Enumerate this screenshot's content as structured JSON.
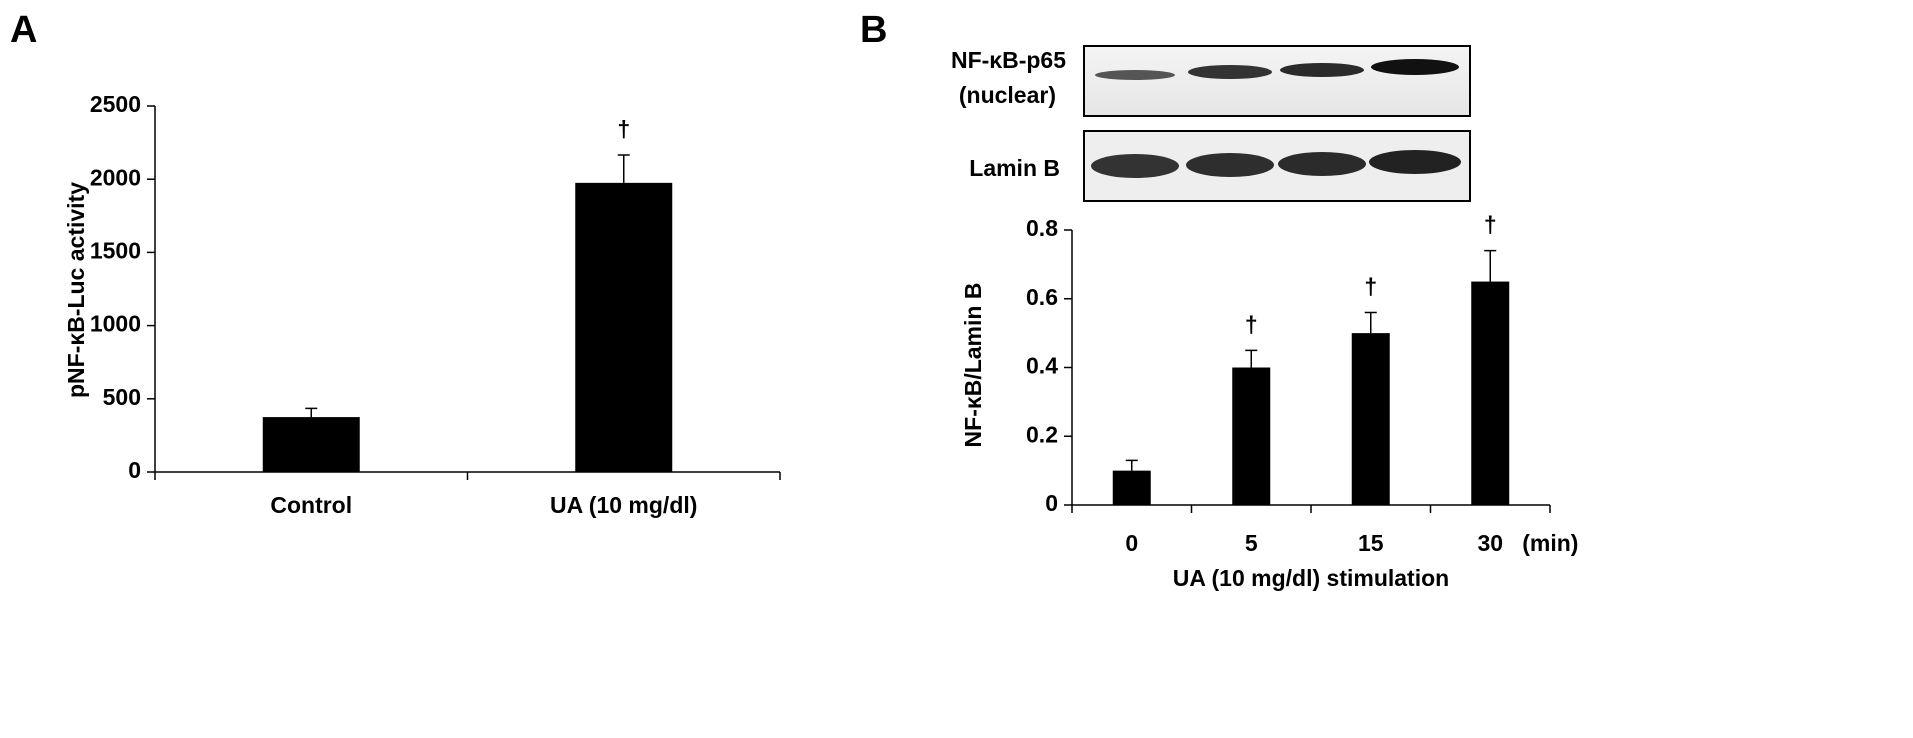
{
  "chart_data": [
    {
      "type": "bar",
      "panel_label": "A",
      "ylabel": "pNF-κB-Luc activity",
      "categories": [
        "Control",
        "UA (10 mg/dl)"
      ],
      "series": [
        {
          "color": "#000000",
          "values": [
            375,
            1975
          ],
          "errors": [
            60,
            190
          ]
        }
      ],
      "annotations": [
        null,
        "†"
      ],
      "ylim": [
        0,
        2500
      ],
      "yticks": [
        0,
        500,
        1000,
        1500,
        2000,
        2500
      ]
    },
    {
      "type": "bar",
      "panel_label": "B",
      "ylabel": "NF-κB/Lamin B",
      "xlabel": "UA (10 mg/dl) stimulation",
      "x_unit": "(min)",
      "blots": [
        {
          "label": [
            "NF-κB-p65",
            "(nuclear)"
          ]
        },
        {
          "label": [
            "Lamin B"
          ]
        }
      ],
      "categories": [
        "0",
        "5",
        "15",
        "30"
      ],
      "series": [
        {
          "color": "#000000",
          "values": [
            0.1,
            0.4,
            0.5,
            0.65
          ],
          "errors": [
            0.03,
            0.05,
            0.06,
            0.09
          ]
        }
      ],
      "annotations": [
        null,
        "†",
        "†",
        "†"
      ],
      "ylim": [
        0,
        0.8
      ],
      "yticks": [
        0,
        0.2,
        0.4,
        0.6,
        0.8
      ]
    }
  ]
}
